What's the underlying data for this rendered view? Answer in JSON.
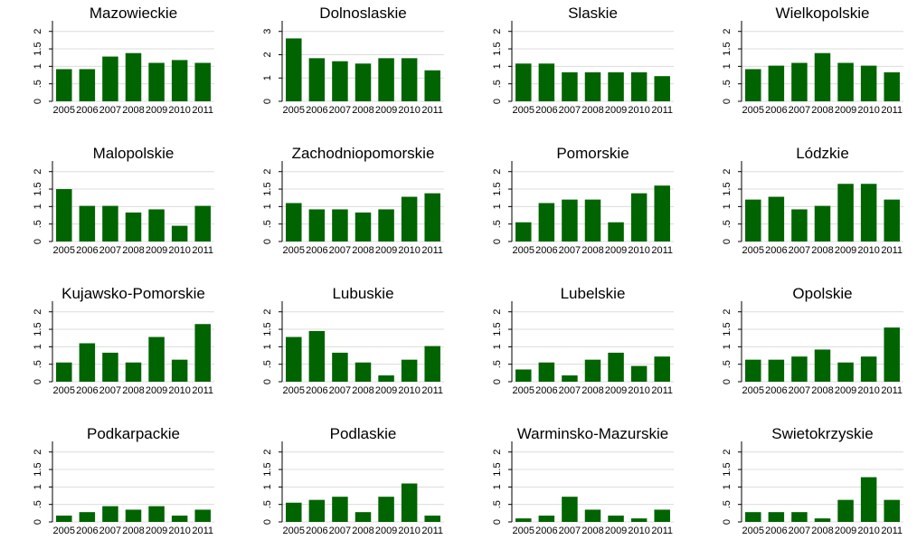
{
  "chart_data": {
    "type": "bar",
    "layout": "small-multiples 4x4",
    "categories": [
      "2005",
      "2006",
      "2007",
      "2008",
      "2009",
      "2010",
      "2011"
    ],
    "grid": true,
    "bar_color": "#006400",
    "panels": [
      {
        "title": "Mazowieckie",
        "ylim": [
          0,
          2.2
        ],
        "yticks": [
          0,
          0.5,
          1,
          1.5,
          2
        ],
        "ytick_labels": [
          "0",
          ".5",
          "1",
          "1.5",
          "2"
        ],
        "values": [
          0.92,
          0.92,
          1.28,
          1.38,
          1.1,
          1.18,
          1.1
        ]
      },
      {
        "title": "Dolnoslaskie",
        "ylim": [
          0,
          3.3
        ],
        "yticks": [
          0,
          1,
          2,
          3
        ],
        "ytick_labels": [
          "0",
          "1",
          "2",
          "3"
        ],
        "values": [
          2.7,
          1.85,
          1.72,
          1.62,
          1.85,
          1.85,
          1.33
        ]
      },
      {
        "title": "Slaskie",
        "ylim": [
          0,
          2.2
        ],
        "yticks": [
          0,
          0.5,
          1,
          1.5,
          2
        ],
        "ytick_labels": [
          "0",
          ".5",
          "1",
          "1.5",
          "2"
        ],
        "values": [
          1.08,
          1.08,
          0.83,
          0.83,
          0.83,
          0.83,
          0.72
        ]
      },
      {
        "title": "Wielkopolskie",
        "ylim": [
          0,
          2.2
        ],
        "yticks": [
          0,
          0.5,
          1,
          1.5,
          2
        ],
        "ytick_labels": [
          "0",
          ".5",
          "1",
          "1.5",
          "2"
        ],
        "values": [
          0.92,
          1.02,
          1.1,
          1.38,
          1.1,
          1.02,
          0.83
        ]
      },
      {
        "title": "Malopolskie",
        "ylim": [
          0,
          2.2
        ],
        "yticks": [
          0,
          0.5,
          1,
          1.5,
          2
        ],
        "ytick_labels": [
          "0",
          ".5",
          "1",
          "1.5",
          "2"
        ],
        "values": [
          1.5,
          1.02,
          1.02,
          0.83,
          0.92,
          0.45,
          1.02
        ]
      },
      {
        "title": "Zachodniopomorskie",
        "ylim": [
          0,
          2.2
        ],
        "yticks": [
          0,
          0.5,
          1,
          1.5,
          2
        ],
        "ytick_labels": [
          "0",
          ".5",
          "1",
          "1.5",
          "2"
        ],
        "values": [
          1.1,
          0.92,
          0.92,
          0.83,
          0.92,
          1.28,
          1.38
        ]
      },
      {
        "title": "Pomorskie",
        "ylim": [
          0,
          2.2
        ],
        "yticks": [
          0,
          0.5,
          1,
          1.5,
          2
        ],
        "ytick_labels": [
          "0",
          ".5",
          "1",
          "1.5",
          "2"
        ],
        "values": [
          0.55,
          1.1,
          1.2,
          1.2,
          0.55,
          1.38,
          1.6
        ]
      },
      {
        "title": "Lódzkie",
        "ylim": [
          0,
          2.2
        ],
        "yticks": [
          0,
          0.5,
          1,
          1.5,
          2
        ],
        "ytick_labels": [
          "0",
          ".5",
          "1",
          "1.5",
          "2"
        ],
        "values": [
          1.2,
          1.28,
          0.92,
          1.02,
          1.65,
          1.65,
          1.2
        ]
      },
      {
        "title": "Kujawsko-Pomorskie",
        "ylim": [
          0,
          2.2
        ],
        "yticks": [
          0,
          0.5,
          1,
          1.5,
          2
        ],
        "ytick_labels": [
          "0",
          ".5",
          "1",
          "1.5",
          "2"
        ],
        "values": [
          0.55,
          1.1,
          0.83,
          0.55,
          1.28,
          0.63,
          1.65
        ]
      },
      {
        "title": "Lubuskie",
        "ylim": [
          0,
          2.2
        ],
        "yticks": [
          0,
          0.5,
          1,
          1.5,
          2
        ],
        "ytick_labels": [
          "0",
          ".5",
          "1",
          "1.5",
          "2"
        ],
        "values": [
          1.28,
          1.45,
          0.83,
          0.55,
          0.18,
          0.63,
          1.02
        ]
      },
      {
        "title": "Lubelskie",
        "ylim": [
          0,
          2.2
        ],
        "yticks": [
          0,
          0.5,
          1,
          1.5,
          2
        ],
        "ytick_labels": [
          "0",
          ".5",
          "1",
          "1.5",
          "2"
        ],
        "values": [
          0.35,
          0.55,
          0.18,
          0.63,
          0.83,
          0.45,
          0.72
        ]
      },
      {
        "title": "Opolskie",
        "ylim": [
          0,
          2.2
        ],
        "yticks": [
          0,
          0.5,
          1,
          1.5,
          2
        ],
        "ytick_labels": [
          "0",
          ".5",
          "1",
          "1.5",
          "2"
        ],
        "values": [
          0.63,
          0.63,
          0.72,
          0.92,
          0.55,
          0.72,
          1.55
        ]
      },
      {
        "title": "Podkarpackie",
        "ylim": [
          0,
          2.2
        ],
        "yticks": [
          0,
          0.5,
          1,
          1.5,
          2
        ],
        "ytick_labels": [
          "0",
          ".5",
          "1",
          "1.5",
          "2"
        ],
        "values": [
          0.18,
          0.28,
          0.45,
          0.35,
          0.45,
          0.18,
          0.35
        ]
      },
      {
        "title": "Podlaskie",
        "ylim": [
          0,
          2.2
        ],
        "yticks": [
          0,
          0.5,
          1,
          1.5,
          2
        ],
        "ytick_labels": [
          "0",
          ".5",
          "1",
          "1.5",
          "2"
        ],
        "values": [
          0.55,
          0.63,
          0.72,
          0.28,
          0.72,
          1.1,
          0.18
        ]
      },
      {
        "title": "Warminsko-Mazurskie",
        "ylim": [
          0,
          2.2
        ],
        "yticks": [
          0,
          0.5,
          1,
          1.5,
          2
        ],
        "ytick_labels": [
          "0",
          ".5",
          "1",
          "1.5",
          "2"
        ],
        "values": [
          0.1,
          0.18,
          0.72,
          0.35,
          0.18,
          0.1,
          0.35
        ]
      },
      {
        "title": "Swietokrzyskie",
        "ylim": [
          0,
          2.2
        ],
        "yticks": [
          0,
          0.5,
          1,
          1.5,
          2
        ],
        "ytick_labels": [
          "0",
          ".5",
          "1",
          "1.5",
          "2"
        ],
        "values": [
          0.28,
          0.28,
          0.28,
          0.1,
          0.63,
          1.28,
          0.63
        ]
      }
    ]
  }
}
